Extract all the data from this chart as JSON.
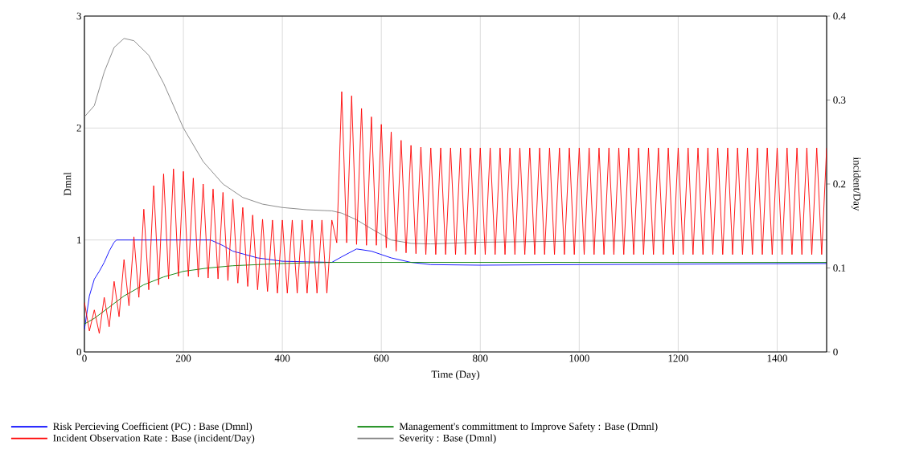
{
  "chart_data": {
    "type": "line",
    "xlabel": "Time (Day)",
    "ylabel": "Dmnl",
    "y2label": "incident/Day",
    "xlim": [
      0,
      1500
    ],
    "xticks": [
      0,
      200,
      400,
      600,
      800,
      1000,
      1200,
      1400
    ],
    "ylim": [
      0,
      3
    ],
    "yticks": [
      0,
      1,
      2,
      3
    ],
    "y2lim": [
      0,
      0.4
    ],
    "y2ticks": [
      0,
      0.1,
      0.2,
      0.3,
      0.4
    ],
    "grid": true,
    "legend": "bottom",
    "series": [
      {
        "name": "Risk Percieving Coefficient (PC) : Base (Dmnl)",
        "color": "#0000ff",
        "x": [
          0,
          10,
          20,
          30,
          40,
          50,
          60,
          65,
          255,
          280,
          300,
          350,
          400,
          500,
          520,
          550,
          580,
          620,
          660,
          700,
          800,
          1000,
          1500
        ],
        "values": [
          0.2,
          0.5,
          0.65,
          0.72,
          0.8,
          0.9,
          0.98,
          1.0,
          1.0,
          0.95,
          0.9,
          0.84,
          0.81,
          0.8,
          0.85,
          0.92,
          0.9,
          0.84,
          0.8,
          0.78,
          0.775,
          0.78,
          0.79
        ]
      },
      {
        "name": "Management's committment to Improve Safety : Base (Dmnl)",
        "color": "#008000",
        "x": [
          0,
          20,
          50,
          80,
          120,
          160,
          200,
          250,
          300,
          350,
          400,
          500,
          1500
        ],
        "values": [
          0.25,
          0.3,
          0.4,
          0.5,
          0.6,
          0.67,
          0.72,
          0.75,
          0.77,
          0.78,
          0.79,
          0.8,
          0.8
        ]
      },
      {
        "name": "Incident Observation Rate : Base (incident/Day)",
        "color": "#ff0000",
        "axis": "y2",
        "x": [
          0,
          10,
          20,
          30,
          40,
          50,
          60,
          70,
          80,
          90,
          100,
          110,
          120,
          130,
          140,
          150,
          160,
          170,
          180,
          190,
          200,
          210,
          220,
          230,
          240,
          250,
          260,
          270,
          280,
          290,
          300,
          310,
          320,
          330,
          340,
          350,
          360,
          370,
          380,
          390,
          400,
          410,
          420,
          430,
          440,
          450,
          460,
          470,
          480,
          490,
          500,
          510,
          520,
          530,
          540,
          550,
          560,
          570,
          580,
          590,
          600,
          610,
          620,
          630,
          640,
          650,
          660,
          670,
          680,
          690,
          700,
          710,
          720,
          730,
          740,
          750,
          760,
          770,
          780,
          790,
          800,
          810,
          820,
          830,
          840,
          850,
          860,
          870,
          880,
          890,
          900,
          910,
          920,
          930,
          940,
          950,
          960,
          970,
          980,
          990,
          1000,
          1010,
          1020,
          1030,
          1040,
          1050,
          1060,
          1070,
          1080,
          1090,
          1100,
          1110,
          1120,
          1130,
          1140,
          1150,
          1160,
          1170,
          1180,
          1190,
          1200,
          1210,
          1220,
          1230,
          1240,
          1250,
          1260,
          1270,
          1280,
          1290,
          1300,
          1310,
          1320,
          1330,
          1340,
          1350,
          1360,
          1370,
          1380,
          1390,
          1400,
          1410,
          1420,
          1430,
          1440,
          1450,
          1460,
          1470,
          1480,
          1490,
          1500
        ],
        "values": [
          0.059,
          0.025,
          0.05,
          0.022,
          0.065,
          0.03,
          0.084,
          0.042,
          0.11,
          0.055,
          0.137,
          0.065,
          0.17,
          0.074,
          0.198,
          0.08,
          0.212,
          0.087,
          0.218,
          0.09,
          0.215,
          0.09,
          0.207,
          0.089,
          0.2,
          0.088,
          0.194,
          0.087,
          0.19,
          0.085,
          0.182,
          0.082,
          0.172,
          0.078,
          0.163,
          0.074,
          0.158,
          0.072,
          0.157,
          0.07,
          0.157,
          0.07,
          0.157,
          0.07,
          0.157,
          0.07,
          0.157,
          0.07,
          0.157,
          0.07,
          0.157,
          0.13,
          0.31,
          0.13,
          0.305,
          0.128,
          0.29,
          0.127,
          0.28,
          0.127,
          0.271,
          0.124,
          0.262,
          0.12,
          0.252,
          0.118,
          0.246,
          0.117,
          0.244,
          0.116,
          0.243,
          0.116,
          0.243,
          0.116,
          0.243,
          0.116,
          0.243,
          0.116,
          0.243,
          0.116,
          0.243,
          0.116,
          0.243,
          0.116,
          0.243,
          0.116,
          0.243,
          0.116,
          0.243,
          0.116,
          0.243,
          0.116,
          0.243,
          0.116,
          0.243,
          0.116,
          0.243,
          0.116,
          0.243,
          0.116,
          0.243,
          0.116,
          0.243,
          0.116,
          0.243,
          0.116,
          0.243,
          0.116,
          0.243,
          0.116,
          0.243,
          0.116,
          0.243,
          0.116,
          0.243,
          0.116,
          0.243,
          0.116,
          0.243,
          0.116,
          0.243,
          0.116,
          0.243,
          0.116,
          0.243,
          0.116,
          0.243,
          0.116,
          0.243,
          0.116,
          0.243,
          0.116,
          0.243,
          0.116,
          0.243,
          0.116,
          0.243,
          0.116,
          0.243,
          0.116,
          0.243,
          0.116,
          0.243,
          0.116,
          0.243,
          0.116,
          0.243,
          0.116,
          0.243,
          0.116,
          0.243
        ]
      },
      {
        "name": "Severity : Base (Dmnl)",
        "color": "#808080",
        "x": [
          0,
          20,
          40,
          60,
          80,
          100,
          130,
          160,
          200,
          240,
          280,
          320,
          360,
          400,
          450,
          500,
          520,
          550,
          580,
          620,
          660,
          700,
          800,
          1000,
          1500
        ],
        "values": [
          2.1,
          2.2,
          2.5,
          2.72,
          2.8,
          2.78,
          2.65,
          2.4,
          2.0,
          1.7,
          1.5,
          1.38,
          1.32,
          1.29,
          1.27,
          1.26,
          1.24,
          1.18,
          1.1,
          1.0,
          0.97,
          0.965,
          0.98,
          0.99,
          1.0
        ]
      }
    ]
  }
}
